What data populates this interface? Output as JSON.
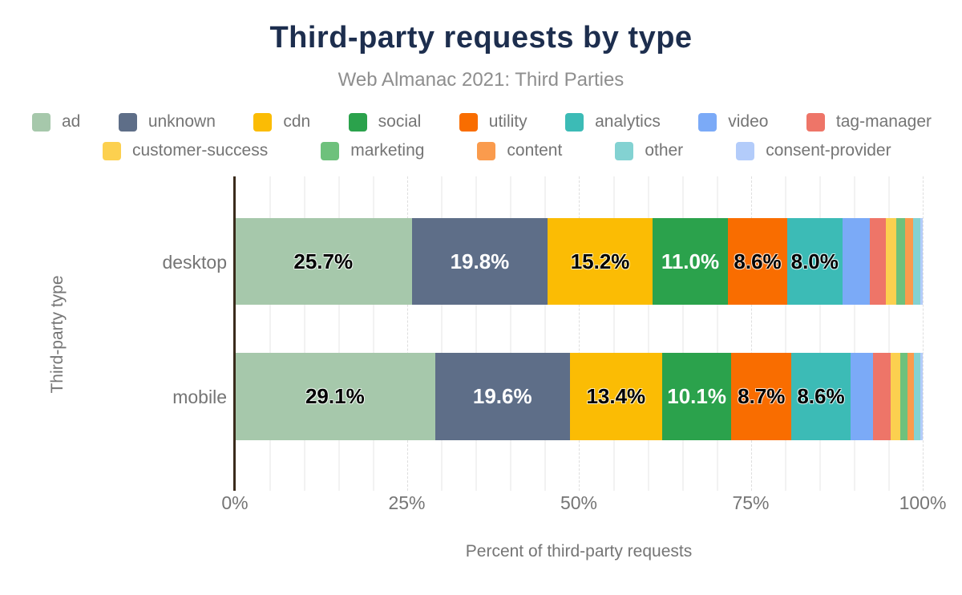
{
  "title": "Third-party requests by type",
  "subtitle": "Web Almanac 2021: Third Parties",
  "axes": {
    "x_label": "Percent of third-party requests",
    "y_label": "Third-party type",
    "x_ticks": [
      "0%",
      "25%",
      "50%",
      "75%",
      "100%"
    ],
    "x_tick_positions": [
      0,
      25,
      50,
      75,
      100
    ]
  },
  "colors": {
    "ad": "#a6c8ab",
    "unknown": "#5e6e88",
    "cdn": "#fbbc04",
    "social": "#2ba24c",
    "utility": "#f96d00",
    "analytics": "#3cbbb6",
    "video": "#7baaf7",
    "tag-manager": "#ee7568",
    "customer-success": "#fcd04f",
    "marketing": "#6ec17c",
    "content": "#fa9b4d",
    "other": "#83d2d2",
    "consent-provider": "#b3ccfa"
  },
  "label_text_colors": {
    "unknown": "#ffffff",
    "social": "#ffffff",
    "default": "#000000"
  },
  "legend": {
    "rows": [
      [
        "ad",
        "unknown",
        "cdn",
        "social",
        "utility",
        "analytics",
        "video",
        "tag-manager"
      ],
      [
        "customer-success",
        "marketing",
        "content",
        "other",
        "consent-provider"
      ]
    ]
  },
  "chart_data": {
    "type": "bar",
    "orientation": "horizontal-stacked",
    "title": "Third-party requests by type",
    "subtitle": "Web Almanac 2021: Third Parties",
    "xlabel": "Percent of third-party requests",
    "ylabel": "Third-party type",
    "xlim": [
      0,
      100
    ],
    "grid": "vertical, minor every 5%, major dashed every 25%",
    "legend_position": "top, two rows",
    "label_min_value_shown": 5,
    "categories": [
      "ad",
      "unknown",
      "cdn",
      "social",
      "utility",
      "analytics",
      "video",
      "tag-manager",
      "customer-success",
      "marketing",
      "content",
      "other",
      "consent-provider"
    ],
    "series": [
      {
        "name": "desktop",
        "values": {
          "ad": 25.7,
          "unknown": 19.8,
          "cdn": 15.2,
          "social": 11.0,
          "utility": 8.6,
          "analytics": 8.0,
          "video": 4.0,
          "tag-manager": 2.3,
          "customer-success": 1.6,
          "marketing": 1.2,
          "content": 1.2,
          "other": 1.1,
          "consent-provider": 0.3
        }
      },
      {
        "name": "mobile",
        "values": {
          "ad": 29.1,
          "unknown": 19.6,
          "cdn": 13.4,
          "social": 10.1,
          "utility": 8.7,
          "analytics": 8.6,
          "video": 3.3,
          "tag-manager": 2.6,
          "customer-success": 1.4,
          "marketing": 1.0,
          "content": 0.9,
          "other": 1.0,
          "consent-provider": 0.3
        }
      }
    ]
  }
}
